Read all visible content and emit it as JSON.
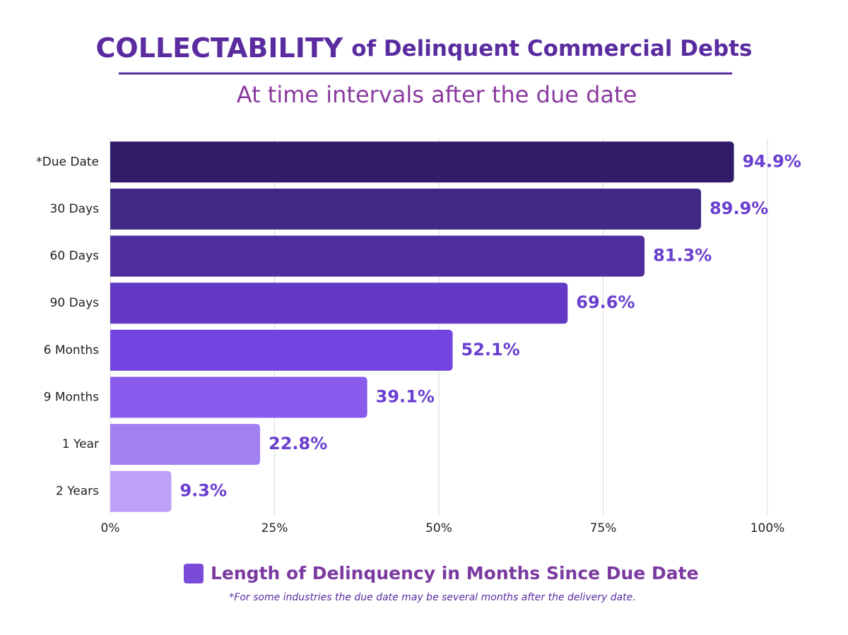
{
  "chart_data": {
    "type": "bar",
    "orientation": "horizontal",
    "title_main": "COLLECTABILITY",
    "title_rest": "of Delinquent Commercial Debts",
    "subtitle": "At time intervals after the due date",
    "categories": [
      "*Due Date",
      "30 Days",
      "60 Days",
      "90 Days",
      "6 Months",
      "9 Months",
      "1 Year",
      "2 Years"
    ],
    "values": [
      94.9,
      89.9,
      81.3,
      69.6,
      52.1,
      39.1,
      22.8,
      9.3
    ],
    "value_labels": [
      "94.9%",
      "89.9%",
      "81.3%",
      "69.6%",
      "52.1%",
      "39.1%",
      "22.8%",
      "9.3%"
    ],
    "colors": [
      "#321c6a",
      "#412a85",
      "#4f2fa0",
      "#6238c4",
      "#7444e0",
      "#8a5cee",
      "#a280f2",
      "#bda0f8"
    ],
    "legend": "Length of Delinquency in Months Since Due Date",
    "legend_color": "#7a4ad8",
    "note": "*For some industries the due date may be several months after the delivery date.",
    "xlim": [
      0,
      100
    ],
    "xticks": [
      {
        "value": 0,
        "label": "0%"
      },
      {
        "value": 25,
        "label": "25%"
      },
      {
        "value": 50,
        "label": "50%"
      },
      {
        "value": 75,
        "label": "75%"
      },
      {
        "value": 100,
        "label": "100%"
      }
    ],
    "grid": true
  }
}
